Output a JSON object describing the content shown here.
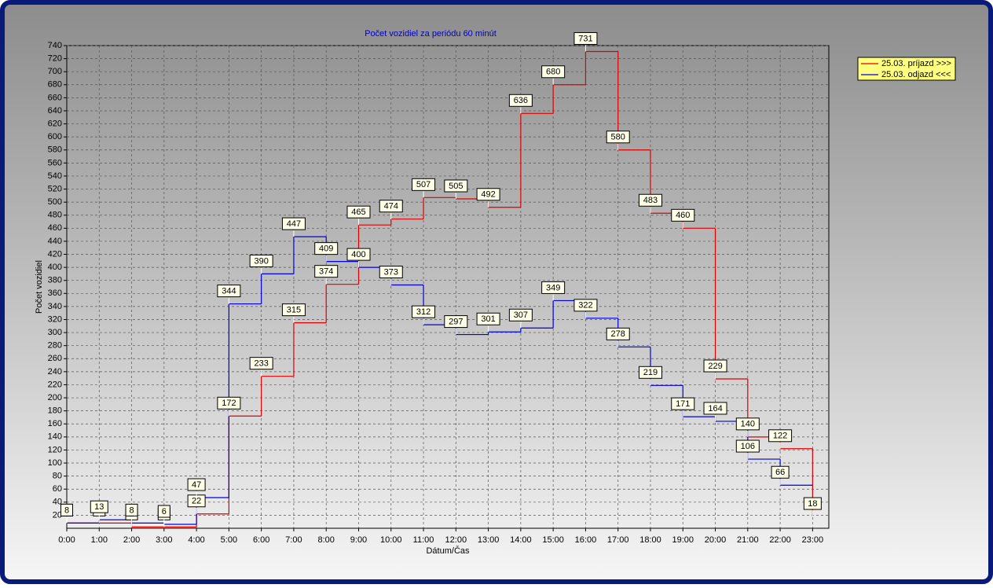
{
  "chart_data": {
    "type": "step",
    "title": "Počet vozidiel za periódu 60 minút",
    "x_label": "Dátum/Čas",
    "y_label": "Počet vozidiel",
    "categories": [
      "0:00",
      "1:00",
      "2:00",
      "3:00",
      "4:00",
      "5:00",
      "6:00",
      "7:00",
      "8:00",
      "9:00",
      "10:00",
      "11:00",
      "12:00",
      "13:00",
      "14:00",
      "15:00",
      "16:00",
      "17:00",
      "18:00",
      "19:00",
      "20:00",
      "21:00",
      "22:00",
      "23:00"
    ],
    "series": [
      {
        "name": "25.03.  príjazd >>>",
        "color": "#e00000",
        "values": [
          8,
          8,
          2,
          2,
          22,
          172,
          233,
          315,
          374,
          465,
          474,
          507,
          505,
          492,
          636,
          680,
          731,
          580,
          483,
          460,
          229,
          140,
          122,
          18
        ]
      },
      {
        "name": "25.03.  odjazd <<<",
        "color": "#0000e0",
        "values": [
          8,
          13,
          8,
          6,
          47,
          344,
          390,
          447,
          409,
          400,
          373,
          312,
          297,
          301,
          307,
          349,
          322,
          278,
          219,
          171,
          164,
          106,
          66,
          null
        ]
      }
    ],
    "ylim": [
      0,
      740
    ],
    "yticks": [
      20,
      40,
      60,
      80,
      100,
      120,
      140,
      160,
      180,
      200,
      220,
      240,
      260,
      280,
      300,
      320,
      340,
      360,
      380,
      400,
      420,
      440,
      460,
      480,
      500,
      520,
      540,
      560,
      580,
      600,
      620,
      640,
      660,
      680,
      700,
      720,
      740
    ],
    "grid": true,
    "legend": "right"
  }
}
